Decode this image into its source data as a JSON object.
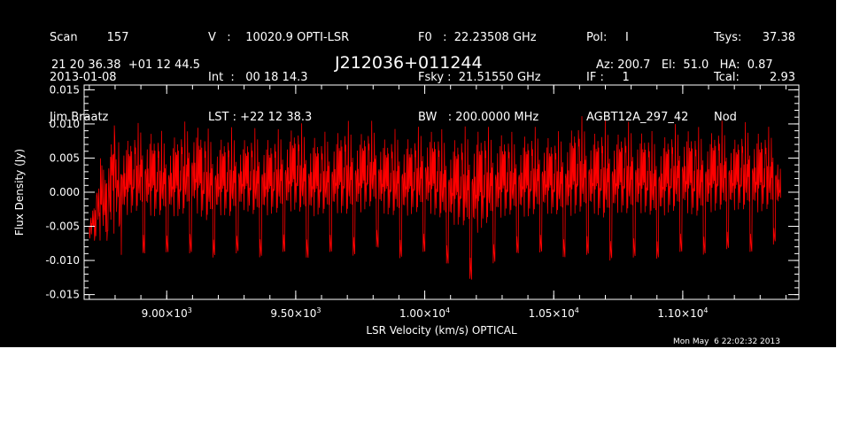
{
  "header": {
    "col1": [
      "Scan        157",
      "2013-01-08",
      "Jim Braatz"
    ],
    "col2": [
      "V   :    10020.9 OPTI-LSR",
      "Int  :   00 18 14.3",
      "LST : +22 12 38.3"
    ],
    "col3": [
      "F0   :  22.23508 GHz",
      "Fsky :  21.51550 GHz",
      "BW   : 200.0000 MHz"
    ],
    "col4": [
      "Pol:     I",
      "IF :     1",
      "AGBT12A_297_42"
    ],
    "col5": [
      "Tsys:",
      "Tcal:",
      "Nod"
    ],
    "col6": [
      "37.38",
      "2.93",
      ""
    ],
    "coords": "21 20 36.38  +01 12 44.5",
    "source": "J212036+011244",
    "azel": "Az: 200.7   El:  51.0   HA:  0.87",
    "timestamp": "Mon May  6 22:02:32 2013"
  },
  "colors": {
    "background": "#000000",
    "axes": "#ffffff",
    "trace": "#ff0000"
  },
  "chart_data": {
    "type": "line",
    "title": "J212036+011244",
    "xlabel": "LSR Velocity (km/s) OPTICAL",
    "ylabel": "Flux Density (Jy)",
    "xlim": [
      8680,
      11450
    ],
    "ylim": [
      -0.0157,
      0.0157
    ],
    "x_ticks": [
      {
        "value": 9000,
        "mant": "9.00",
        "exp": "3"
      },
      {
        "value": 9500,
        "mant": "9.50",
        "exp": "3"
      },
      {
        "value": 10000,
        "mant": "1.00",
        "exp": "4"
      },
      {
        "value": 10500,
        "mant": "1.05",
        "exp": "4"
      },
      {
        "value": 11000,
        "mant": "1.10",
        "exp": "4"
      }
    ],
    "x_minor_step": 100,
    "y_ticks": [
      {
        "value": 0.015,
        "label": "0.015"
      },
      {
        "value": 0.01,
        "label": "0.010"
      },
      {
        "value": 0.005,
        "label": "0.005"
      },
      {
        "value": 0.0,
        "label": "0.000"
      },
      {
        "value": -0.005,
        "label": "-0.005"
      },
      {
        "value": -0.01,
        "label": "-0.010"
      },
      {
        "value": -0.015,
        "label": "-0.015"
      }
    ],
    "y_minor_step": 0.001,
    "grid": false,
    "series": [
      {
        "x": [
          8700,
          8750,
          8800,
          8850,
          8900,
          8950,
          9000,
          9050,
          9100,
          9150,
          9200,
          9250,
          9300,
          9350,
          9400,
          9450,
          9500,
          9550,
          9600,
          9650,
          9700,
          9750,
          9800,
          9850,
          9900,
          9950,
          10000,
          10050,
          10100,
          10150,
          10200,
          10250,
          10300,
          10350,
          10400,
          10450,
          10500,
          10550,
          10600,
          10650,
          10700,
          10750,
          10800,
          10850,
          10900,
          10950,
          11000,
          11050,
          11100,
          11150,
          11200,
          11250,
          11300,
          11350,
          11380
        ],
        "upper": [
          -0.002,
          0.006,
          0.01,
          0.009,
          0.011,
          0.01,
          0.009,
          0.01,
          0.012,
          0.01,
          0.009,
          0.01,
          0.009,
          0.01,
          0.009,
          0.01,
          0.011,
          0.01,
          0.009,
          0.01,
          0.011,
          0.01,
          0.011,
          0.009,
          0.01,
          0.009,
          0.011,
          0.01,
          0.009,
          0.01,
          0.011,
          0.01,
          0.01,
          0.009,
          0.01,
          0.01,
          0.009,
          0.01,
          0.012,
          0.01,
          0.011,
          0.01,
          0.011,
          0.01,
          0.009,
          0.01,
          0.011,
          0.01,
          0.01,
          0.011,
          0.009,
          0.011,
          0.01,
          0.01,
          0.005
        ],
        "lower": [
          -0.008,
          -0.009,
          -0.01,
          -0.009,
          -0.009,
          -0.01,
          -0.009,
          -0.01,
          -0.009,
          -0.011,
          -0.009,
          -0.01,
          -0.008,
          -0.01,
          -0.009,
          -0.009,
          -0.009,
          -0.01,
          -0.009,
          -0.009,
          -0.01,
          -0.009,
          -0.008,
          -0.009,
          -0.01,
          -0.009,
          -0.009,
          -0.01,
          -0.011,
          -0.012,
          -0.014,
          -0.011,
          -0.01,
          -0.009,
          -0.01,
          -0.009,
          -0.009,
          -0.01,
          -0.01,
          -0.009,
          -0.011,
          -0.009,
          -0.01,
          -0.009,
          -0.01,
          -0.009,
          -0.009,
          -0.01,
          -0.009,
          -0.009,
          -0.008,
          -0.009,
          -0.009,
          -0.008,
          -0.006
        ]
      }
    ]
  }
}
